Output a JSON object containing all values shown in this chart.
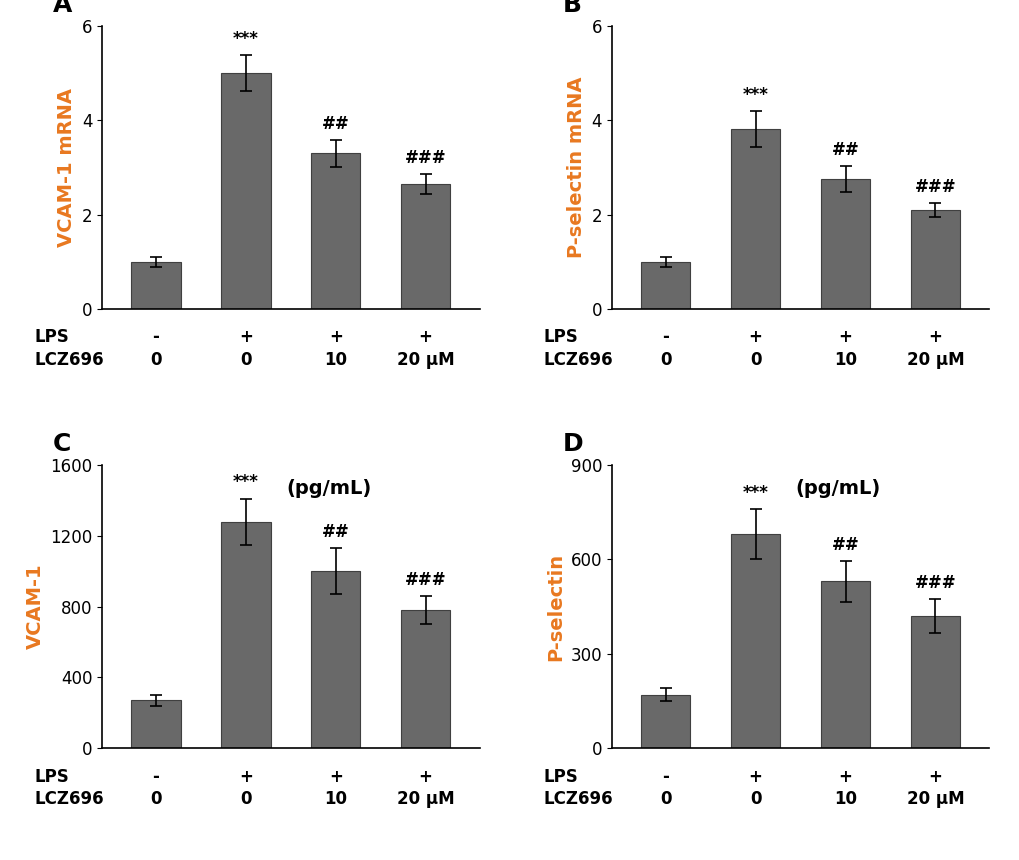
{
  "panels": [
    {
      "label": "A",
      "ylabel": "VCAM-1 mRNA",
      "ylabel_color": "#E87820",
      "values": [
        1.0,
        5.0,
        3.3,
        2.65
      ],
      "errors": [
        0.1,
        0.38,
        0.28,
        0.22
      ],
      "ylim": [
        0,
        6
      ],
      "yticks": [
        0,
        2,
        4,
        6
      ],
      "annotations": [
        "",
        "***",
        "##",
        "###"
      ],
      "pg_label": ""
    },
    {
      "label": "B",
      "ylabel": "P-selectin mRNA",
      "ylabel_color": "#E87820",
      "values": [
        1.0,
        3.82,
        2.75,
        2.1
      ],
      "errors": [
        0.1,
        0.38,
        0.28,
        0.15
      ],
      "ylim": [
        0,
        6
      ],
      "yticks": [
        0,
        2,
        4,
        6
      ],
      "annotations": [
        "",
        "***",
        "##",
        "###"
      ],
      "pg_label": ""
    },
    {
      "label": "C",
      "ylabel": "VCAM-1",
      "ylabel_color": "#E87820",
      "values": [
        270,
        1280,
        1000,
        780
      ],
      "errors": [
        30,
        130,
        130,
        80
      ],
      "ylim": [
        0,
        1600
      ],
      "yticks": [
        0,
        400,
        800,
        1200,
        1600
      ],
      "annotations": [
        "",
        "***",
        "##",
        "###"
      ],
      "pg_label": "(pg/mL)"
    },
    {
      "label": "D",
      "ylabel": "P-selectin",
      "ylabel_color": "#E87820",
      "values": [
        170,
        680,
        530,
        420
      ],
      "errors": [
        20,
        80,
        65,
        55
      ],
      "ylim": [
        0,
        900
      ],
      "yticks": [
        0,
        300,
        600,
        900
      ],
      "annotations": [
        "",
        "***",
        "##",
        "###"
      ],
      "pg_label": "(pg/mL)"
    }
  ],
  "bar_color": "#696969",
  "bar_edgecolor": "#404040",
  "bar_width": 0.55,
  "lps_labels": [
    "-",
    "+",
    "+",
    "+"
  ],
  "lcz_labels": [
    "0",
    "0",
    "10",
    "20 μM"
  ],
  "background_color": "#ffffff",
  "annotation_fontsize": 12,
  "panel_label_fontsize": 18,
  "tick_fontsize": 12,
  "axis_label_fontsize": 14,
  "xlabel_fontsize": 12
}
